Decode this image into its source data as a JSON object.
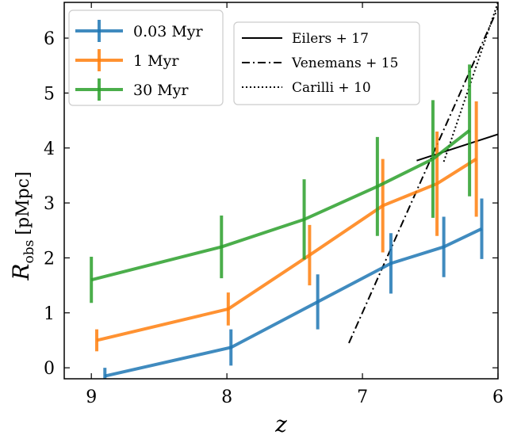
{
  "chart_data": {
    "type": "line",
    "xlabel": "z",
    "ylabel_main": "R",
    "ylabel_sub": "obs",
    "ylabel_unit": "[pMpc]",
    "xlim": [
      9.2,
      6.0
    ],
    "ylim": [
      -0.2,
      6.65
    ],
    "xticks": [
      9,
      8,
      7,
      6
    ],
    "yticks": [
      0,
      1,
      2,
      3,
      4,
      5,
      6
    ],
    "grid": false,
    "series": [
      {
        "name": "0.03 Myr",
        "color": "#1f77b4",
        "points": [
          {
            "x": 8.9,
            "y": -0.15,
            "err": 0.15
          },
          {
            "x": 7.97,
            "y": 0.37,
            "err": 0.33
          },
          {
            "x": 7.33,
            "y": 1.2,
            "err": 0.5
          },
          {
            "x": 6.79,
            "y": 1.9,
            "err": 0.55
          },
          {
            "x": 6.4,
            "y": 2.2,
            "err": 0.55
          },
          {
            "x": 6.12,
            "y": 2.53,
            "err": 0.55
          }
        ]
      },
      {
        "name": "1 Myr",
        "color": "#ff7f0e",
        "points": [
          {
            "x": 8.96,
            "y": 0.5,
            "err": 0.2
          },
          {
            "x": 7.99,
            "y": 1.07,
            "err": 0.3
          },
          {
            "x": 7.39,
            "y": 2.05,
            "err": 0.55
          },
          {
            "x": 6.85,
            "y": 2.95,
            "err": 0.85
          },
          {
            "x": 6.45,
            "y": 3.35,
            "err": 0.95
          },
          {
            "x": 6.16,
            "y": 3.8,
            "err": 1.05
          }
        ]
      },
      {
        "name": "30 Myr",
        "color": "#2ca02c",
        "points": [
          {
            "x": 9.0,
            "y": 1.6,
            "err": 0.42
          },
          {
            "x": 8.04,
            "y": 2.2,
            "err": 0.57
          },
          {
            "x": 7.43,
            "y": 2.7,
            "err": 0.73
          },
          {
            "x": 6.89,
            "y": 3.3,
            "err": 0.9
          },
          {
            "x": 6.48,
            "y": 3.8,
            "err": 1.07
          },
          {
            "x": 6.21,
            "y": 4.32,
            "err": 1.2
          }
        ]
      }
    ],
    "reference_lines": [
      {
        "name": "Eilers + 17",
        "style": "solid",
        "points": [
          [
            6.6,
            3.77
          ],
          [
            6.0,
            4.25
          ]
        ]
      },
      {
        "name": "Venemans + 15",
        "style": "dashdot",
        "points": [
          [
            7.1,
            0.45
          ],
          [
            6.0,
            6.55
          ]
        ]
      },
      {
        "name": "Carilli + 10",
        "style": "dotted",
        "points": [
          [
            6.4,
            3.75
          ],
          [
            6.0,
            6.65
          ]
        ]
      }
    ],
    "legend_left": {
      "placement": "top-left",
      "entries": [
        "0.03 Myr",
        "1 Myr",
        "30 Myr"
      ]
    },
    "legend_right": {
      "placement": "top-center",
      "entries": [
        "Eilers + 17",
        "Venemans + 15",
        "Carilli + 10"
      ]
    }
  }
}
